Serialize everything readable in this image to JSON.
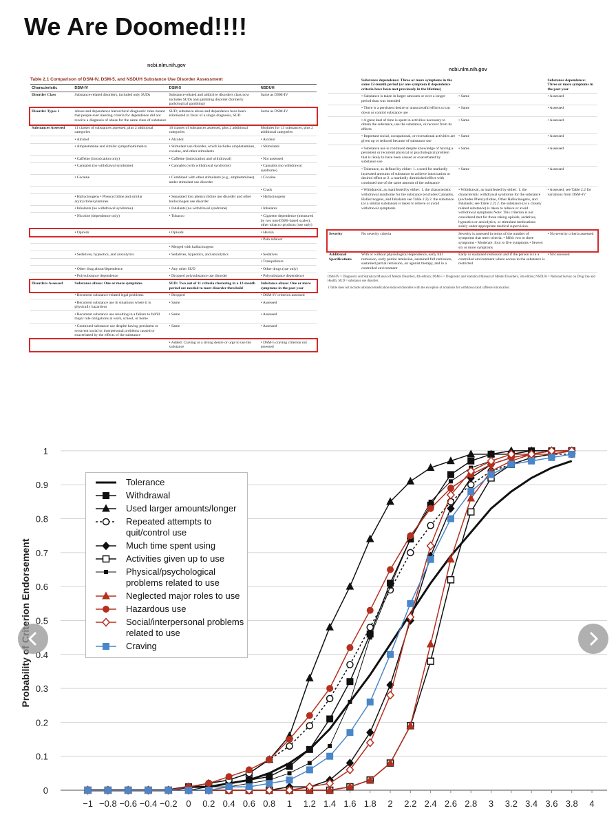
{
  "post_title": "We Are Doomed!!!!",
  "left_table": {
    "source": "ncbi.nlm.nih.gov",
    "caption": "Table 2.1 Comparison of DSM-IV, DSM-5, and NSDUH Substance Use Disorder Assessment",
    "columns": [
      "Characteristic",
      "DSM-IV",
      "DSM-5",
      "NSDUH"
    ],
    "rows": [
      {
        "cells": [
          "Disorder Class",
          "Substance-related disorders, included only SUDs",
          "Substance-related and addictive disorders class now includes SUDs and gambling disorder (formerly pathological gambling)",
          "Same as DSM-IV"
        ]
      },
      {
        "cells": [
          "Disorder Types 1",
          "Abuse and dependence hierarchical diagnostic rules meant that people ever meeting criteria for dependence did not receive a diagnosis of abuse for the same class of substance",
          "SUD; substance abuse and dependence have been eliminated in favor of a single diagnosis, SUD",
          "Same as DSM-IV"
        ],
        "highlight": true
      },
      {
        "cells": [
          "Substances Assessed",
          "11 classes of substances assessed, plus 2 additional categories",
          "10 classes of substances assessed, plus 2 additional categories",
          "Modules for 13 substances, plus 2 additional categories"
        ]
      },
      {
        "cells": [
          null,
          "• Alcohol",
          "• Alcohol",
          "• Alcohol"
        ]
      },
      {
        "cells": [
          null,
          "• Amphetamine and similar sympathomimetics",
          "• Stimulant use disorder, which includes amphetamines, cocaine, and other stimulants",
          "• Stimulants"
        ]
      },
      {
        "cells": [
          null,
          "• Caffeine (intoxication only)",
          "• Caffeine (intoxication and withdrawal)",
          "• Not assessed"
        ]
      },
      {
        "cells": [
          null,
          "• Cannabis (no withdrawal syndrome)",
          "• Cannabis (with withdrawal syndrome)",
          "• Cannabis (no withdrawal syndrome)"
        ]
      },
      {
        "cells": [
          null,
          "• Cocaine",
          "• Combined with other stimulants (e.g., amphetamines) under stimulant use disorder",
          "• Cocaine"
        ]
      },
      {
        "cells": [
          null,
          null,
          null,
          "• Crack"
        ]
      },
      {
        "cells": [
          null,
          "• Hallucinogens • Phencyclidine and similar arylcyclohexylamines",
          "• Separated into phencyclidine use disorder and other hallucinogen use disorder",
          "• Hallucinogens"
        ]
      },
      {
        "cells": [
          null,
          "• Inhalants (no withdrawal syndrome)",
          "• Inhalants (no withdrawal syndrome)",
          "• Inhalants"
        ]
      },
      {
        "cells": [
          null,
          "• Nicotine (dependence only)",
          "• Tobacco",
          "• Cigarette dependence (measured by two non-DSM–based scales), other tobacco products (use only)"
        ]
      },
      {
        "cells": [
          null,
          "• Opioids",
          "• Opioids",
          "• Heroin"
        ],
        "highlight": true
      },
      {
        "cells": [
          null,
          null,
          null,
          "• Pain reliever"
        ]
      },
      {
        "cells": [
          null,
          null,
          "• Merged with hallucinogens",
          null
        ]
      },
      {
        "cells": [
          null,
          "• Sedatives, hypnotics, and anxiolytics",
          "• Sedatives, hypnotics, and anxiolytics",
          "• Sedatives"
        ]
      },
      {
        "cells": [
          null,
          null,
          null,
          "• Tranquilizers"
        ]
      },
      {
        "cells": [
          null,
          "• Other drug abuse/dependence",
          "• Any other SUD",
          "• Other drugs (use only)"
        ]
      },
      {
        "cells": [
          null,
          "• Polysubstance dependence",
          "• Dropped polysubstance use disorder",
          "• Polysubstance dependence"
        ]
      },
      {
        "cells": [
          "Disorders Assessed",
          "Substance abuse: One or more symptoms",
          "SUD: Two out of 11 criteria clustering in a 12-month period are needed to meet disorder threshold",
          "Substance abuse: One or more symptoms in the past year"
        ],
        "highlight": true,
        "bold": true
      },
      {
        "cells": [
          null,
          "• Recurrent substance-related legal problems",
          "• Dropped",
          "• DSM-IV criterion assessed"
        ]
      },
      {
        "cells": [
          null,
          "• Recurrent substance use in situations where it is physically hazardous",
          "• Same",
          "• Assessed"
        ]
      },
      {
        "cells": [
          null,
          "• Recurrent substance use resulting in a failure to fulfill major role obligations at work, school, or home",
          "• Same",
          "• Assessed"
        ]
      },
      {
        "cells": [
          null,
          "• Continued substance use despite having persistent or recurrent social or interpersonal problems caused or exacerbated by the effects of the substance",
          "• Same",
          "• Assessed"
        ]
      },
      {
        "cells": [
          null,
          null,
          "• Added: Craving or a strong desire or urge to use the substance",
          "• DSM-5 craving criterion not assessed"
        ],
        "highlight": true
      }
    ]
  },
  "right_table": {
    "source": "ncbi.nlm.nih.gov",
    "rows": [
      {
        "cells": [
          null,
          "Substance dependence: Three or more symptoms in the same 12-month period (or one symptom if dependence criteria have been met previously in the lifetime)",
          null,
          "Substance dependence: Three or more symptoms in the past year"
        ],
        "bold": true
      },
      {
        "cells": [
          null,
          "• Substance is taken in larger amounts or over a longer period than was intended",
          "• Same",
          "• Assessed"
        ]
      },
      {
        "cells": [
          null,
          "• There is a persistent desire or unsuccessful efforts to cut down or control substance use",
          "• Same",
          "• Assessed"
        ]
      },
      {
        "cells": [
          null,
          "• A great deal of time is spent in activities necessary to obtain the substance, use the substance, or recover from its effects",
          "• Same",
          "• Assessed"
        ]
      },
      {
        "cells": [
          null,
          "• Important social, occupational, or recreational activities are given up or reduced because of substance use",
          "• Same",
          "• Assessed"
        ]
      },
      {
        "cells": [
          null,
          "• Substance use is continued despite knowledge of having a persistent or recurrent physical or psychological problem that is likely to have been caused or exacerbated by substance use",
          "• Same",
          "• Assessed"
        ]
      },
      {
        "cells": [
          null,
          "• Tolerance, as defined by either: 1. a need for markedly increased amounts of substance to achieve intoxication or desired effect or 2. a markedly diminished effect with continued use of the same amount of the substance",
          "• Same",
          "• Assessed"
        ]
      },
      {
        "cells": [
          null,
          "• Withdrawal, as manifested by either: 1. the characteristic withdrawal syndrome for the substance (excludes Cannabis, Hallucinogens, and Inhalants see Table 2.2) 2. the substance (or a similar substance) is taken to relieve or avoid withdrawal symptoms",
          "• Withdrawal, as manifested by either: 1. the characteristic withdrawal syndrome for the substance (excludes Phencyclidine, Other Hallucinogens, and Inhalants; see Table 2.2) 2. the substance (or a closely related substance) is taken to relieve or avoid withdrawal symptoms Note: This criterion is not considered met for those taking opioids, sedatives, hypnotics or anxiolytics, or stimulant medications solely under appropriate medical supervision.",
          "• Assessed, see Table 2.2 for variations from DSM-IV"
        ]
      },
      {
        "cells": [
          "Severity",
          "No severity criteria",
          "Severity is assessed in terms of the number of symptoms that meet criteria: • Mild: two to three symptoms • Moderate: four to five symptoms • Severe: six or more symptoms",
          "• No severity criteria assessed"
        ],
        "highlight": true
      },
      {
        "cells": [
          "Additional Specifications",
          "With or without physiological dependence, early full remission, early partial remission, sustained full remission, sustained partial remission, on agonist therapy, and in a controlled environment",
          "Early or sustained remission and if the person is in a controlled environment where access to the substance is restricted",
          "• Not assessed"
        ]
      }
    ],
    "footnotes": [
      "DSM-IV = Diagnostic and Statistical Manual of Mental Disorders, 4th edition; DSM-5 = Diagnostic and Statistical Manual of Mental Disorders, 5th edition; NSDUH = National Survey on Drug Use and Health; SUD = substance use disorder.",
      "1 Table does not include substance/medication-induced disorders with the exception of notations for withdrawal and caffeine intoxication."
    ]
  },
  "chart_data": {
    "type": "line",
    "ylabel": "Probability of Criterion Endorsement",
    "x": [
      -1,
      -0.8,
      -0.6,
      -0.4,
      -0.2,
      0,
      0.2,
      0.4,
      0.6,
      0.8,
      1,
      1.2,
      1.4,
      1.6,
      1.8,
      2,
      2.2,
      2.4,
      2.6,
      2.8,
      3,
      3.2,
      3.4,
      3.6,
      3.8
    ],
    "xlim": [
      -1.27,
      4.15
    ],
    "xticks": [
      {
        "value": -1,
        "label": "−1"
      },
      {
        "value": -0.8,
        "label": "−0.8"
      },
      {
        "value": -0.6,
        "label": "−0.6"
      },
      {
        "value": -0.4,
        "label": "−0.4"
      },
      {
        "value": -0.2,
        "label": "−0.2"
      },
      0,
      0.2,
      0.4,
      0.6,
      0.8,
      1,
      1.2,
      1.4,
      1.6,
      1.8,
      2,
      2.2,
      2.4,
      2.6,
      2.8,
      3,
      3.2,
      3.4,
      3.6,
      3.8,
      4
    ],
    "ylim": [
      0,
      1.01
    ],
    "yticks": [
      0,
      0.1,
      0.2,
      0.3,
      0.4,
      0.5,
      0.6,
      0.7,
      0.8,
      0.9,
      1
    ],
    "grid": true,
    "series": [
      {
        "name": "Tolerance",
        "color": "#111111",
        "line_width": 3,
        "marker": null,
        "values": [
          0,
          0,
          0,
          0,
          0,
          0.01,
          0.01,
          0.02,
          0.03,
          0.05,
          0.08,
          0.12,
          0.18,
          0.26,
          0.34,
          0.43,
          0.52,
          0.61,
          0.69,
          0.76,
          0.83,
          0.88,
          0.92,
          0.95,
          0.97
        ]
      },
      {
        "name": "Withdrawal",
        "color": "#111111",
        "line_width": 1.5,
        "marker": "square",
        "open": false,
        "values": [
          0,
          0,
          0,
          0,
          0,
          0.01,
          0.01,
          0.02,
          0.03,
          0.04,
          0.07,
          0.12,
          0.21,
          0.32,
          0.46,
          0.61,
          0.74,
          0.84,
          0.93,
          0.97,
          0.99,
          0.99,
          1,
          1,
          1
        ]
      },
      {
        "name": "Used larger amounts/longer",
        "color": "#111111",
        "line_width": 1.5,
        "marker": "triangle",
        "open": false,
        "values": [
          0,
          0,
          0,
          0,
          0,
          0.01,
          0.02,
          0.03,
          0.05,
          0.09,
          0.16,
          0.33,
          0.48,
          0.6,
          0.74,
          0.85,
          0.91,
          0.95,
          0.97,
          0.99,
          0.99,
          1,
          1,
          1,
          1
        ]
      },
      {
        "name": "Repeated attempts to quit/control use",
        "color": "#111111",
        "line_width": 1.5,
        "dashed": true,
        "marker": "circle",
        "open": true,
        "values": [
          0,
          0,
          0,
          0,
          0,
          0.01,
          0.02,
          0.03,
          0.05,
          0.09,
          0.13,
          0.19,
          0.27,
          0.37,
          0.48,
          0.59,
          0.7,
          0.78,
          0.85,
          0.9,
          0.94,
          0.96,
          0.98,
          0.99,
          0.99
        ]
      },
      {
        "name": "Much time spent using",
        "color": "#111111",
        "line_width": 1.5,
        "marker": "diamond",
        "open": false,
        "values": [
          0,
          0,
          0,
          0,
          0,
          0,
          0,
          0,
          0,
          0,
          0.01,
          0.01,
          0.03,
          0.08,
          0.17,
          0.31,
          0.5,
          0.69,
          0.83,
          0.92,
          0.96,
          0.98,
          0.99,
          1,
          1
        ]
      },
      {
        "name": "Activities given up to use",
        "color": "#111111",
        "line_width": 1.5,
        "marker": "square",
        "open": true,
        "values": [
          0,
          0,
          0,
          0,
          0,
          0,
          0,
          0,
          0,
          0,
          0,
          0,
          0,
          0.01,
          0.03,
          0.08,
          0.19,
          0.38,
          0.62,
          0.82,
          0.92,
          0.96,
          0.98,
          0.99,
          1
        ]
      },
      {
        "name": "Physical/psychological problems related to use",
        "color": "#111111",
        "line_width": 1,
        "marker": "small-square",
        "open": false,
        "values": [
          0,
          0,
          0,
          0,
          0,
          0,
          0.01,
          0.01,
          0.02,
          0.03,
          0.05,
          0.08,
          0.13,
          0.26,
          0.45,
          0.6,
          0.74,
          0.85,
          0.91,
          0.95,
          0.97,
          0.99,
          0.99,
          1,
          1
        ]
      },
      {
        "name": "Neglected major roles to use",
        "color": "#b5301f",
        "line_width": 1.5,
        "marker": "triangle",
        "open": false,
        "values": [
          0,
          0,
          0,
          0,
          0,
          0,
          0,
          0,
          0,
          0,
          0,
          0,
          0,
          0.01,
          0.03,
          0.08,
          0.19,
          0.43,
          0.68,
          0.86,
          0.94,
          0.97,
          0.99,
          1,
          1
        ]
      },
      {
        "name": "Hazardous use",
        "color": "#b5301f",
        "line_width": 1.5,
        "marker": "circle",
        "open": false,
        "values": [
          0,
          0,
          0,
          0,
          0,
          0.01,
          0.02,
          0.04,
          0.06,
          0.09,
          0.15,
          0.22,
          0.3,
          0.42,
          0.53,
          0.65,
          0.75,
          0.83,
          0.89,
          0.93,
          0.96,
          0.98,
          0.99,
          0.99,
          1
        ]
      },
      {
        "name": "Social/interpersonal problems related to use",
        "color": "#b5301f",
        "line_width": 1.5,
        "marker": "diamond",
        "open": true,
        "values": [
          0,
          0,
          0,
          0,
          0,
          0,
          0,
          0,
          0,
          0,
          0,
          0.01,
          0.02,
          0.06,
          0.14,
          0.28,
          0.51,
          0.72,
          0.87,
          0.94,
          0.97,
          0.99,
          0.99,
          1,
          1
        ]
      },
      {
        "name": "Craving",
        "color": "#4a86c8",
        "line_width": 1.5,
        "marker": "square",
        "open": false,
        "values": [
          0,
          0,
          0,
          0,
          0,
          0,
          0,
          0.01,
          0.01,
          0.02,
          0.03,
          0.06,
          0.1,
          0.17,
          0.26,
          0.4,
          0.55,
          0.68,
          0.8,
          0.88,
          0.93,
          0.96,
          0.97,
          0.98,
          0.99
        ]
      }
    ]
  }
}
